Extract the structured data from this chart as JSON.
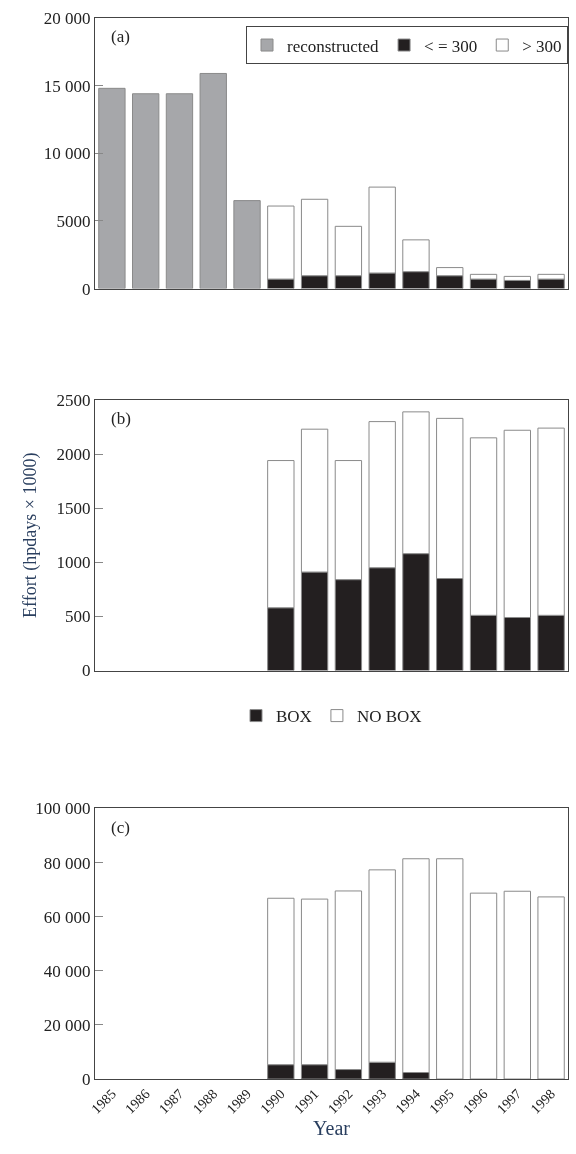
{
  "chart_data": [
    {
      "type": "bar",
      "stacked": true,
      "categories": [
        "1985",
        "1986",
        "1987",
        "1988",
        "1989",
        "1990",
        "1991",
        "1992",
        "1993",
        "1994",
        "1995",
        "1996",
        "1997",
        "1998"
      ],
      "series": [
        {
          "name": "reconstructed",
          "color": "#a6a7aa",
          "values": [
            14800,
            14400,
            14400,
            15900,
            6500,
            null,
            null,
            null,
            null,
            null,
            null,
            null,
            null,
            null
          ]
        },
        {
          "name": "< = 300",
          "color": "#231f20",
          "values": [
            null,
            null,
            null,
            null,
            null,
            700,
            950,
            950,
            1150,
            1250,
            950,
            700,
            600,
            700
          ]
        },
        {
          "name": "> 300",
          "color": "#ffffff",
          "values": [
            null,
            null,
            null,
            null,
            null,
            5400,
            5650,
            3650,
            6350,
            2350,
            600,
            350,
            300,
            350
          ]
        }
      ],
      "ylim": [
        0,
        20000
      ],
      "yticks": [
        0,
        5000,
        {
          "value": 10000,
          "label": "10 000"
        },
        {
          "value": 15000,
          "label": "15 000"
        },
        {
          "value": 20000,
          "label": "20 000"
        }
      ],
      "tick_labels": "y",
      "legend": "top right",
      "annotations": [
        "(a)"
      ]
    },
    {
      "type": "bar",
      "stacked": true,
      "categories": [
        "1985",
        "1986",
        "1987",
        "1988",
        "1989",
        "1990",
        "1991",
        "1992",
        "1993",
        "1994",
        "1995",
        "1996",
        "1997",
        "1998"
      ],
      "series": [
        {
          "name": "BOX",
          "color": "#231f20",
          "values": [
            null,
            null,
            null,
            null,
            null,
            580,
            910,
            840,
            950,
            1080,
            850,
            510,
            490,
            510
          ]
        },
        {
          "name": "NO BOX",
          "color": "#ffffff",
          "values": [
            null,
            null,
            null,
            null,
            null,
            1360,
            1320,
            1100,
            1350,
            1310,
            1480,
            1640,
            1730,
            1730
          ]
        }
      ],
      "ylim": [
        0,
        2500
      ],
      "yticks": [
        0,
        500,
        1000,
        1500,
        2000,
        2500
      ],
      "ylabel": "Effort (hpdays × 1000)",
      "tick_labels": "y",
      "legend": "bottom",
      "annotations": [
        "(b)"
      ]
    },
    {
      "type": "bar",
      "stacked": true,
      "categories": [
        "1985",
        "1986",
        "1987",
        "1988",
        "1989",
        "1990",
        "1991",
        "1992",
        "1993",
        "1994",
        "1995",
        "1996",
        "1997",
        "1998"
      ],
      "series": [
        {
          "color": "#231f20",
          "values": [
            null,
            null,
            null,
            null,
            null,
            5300,
            5300,
            3500,
            6200,
            2400,
            null,
            null,
            null,
            null
          ]
        },
        {
          "color": "#ffffff",
          "values": [
            null,
            null,
            null,
            null,
            null,
            61500,
            61200,
            66000,
            71100,
            79000,
            81400,
            68700,
            69400,
            67300
          ]
        }
      ],
      "ylim": [
        0,
        100000
      ],
      "yticks": [
        0,
        {
          "value": 20000,
          "label": "20 000"
        },
        {
          "value": 40000,
          "label": "40 000"
        },
        {
          "value": 60000,
          "label": "60 000"
        },
        {
          "value": 80000,
          "label": "80 000"
        },
        {
          "value": 100000,
          "label": "100 000"
        }
      ],
      "xlabel": "Year",
      "annotations": [
        "(c)"
      ]
    }
  ]
}
